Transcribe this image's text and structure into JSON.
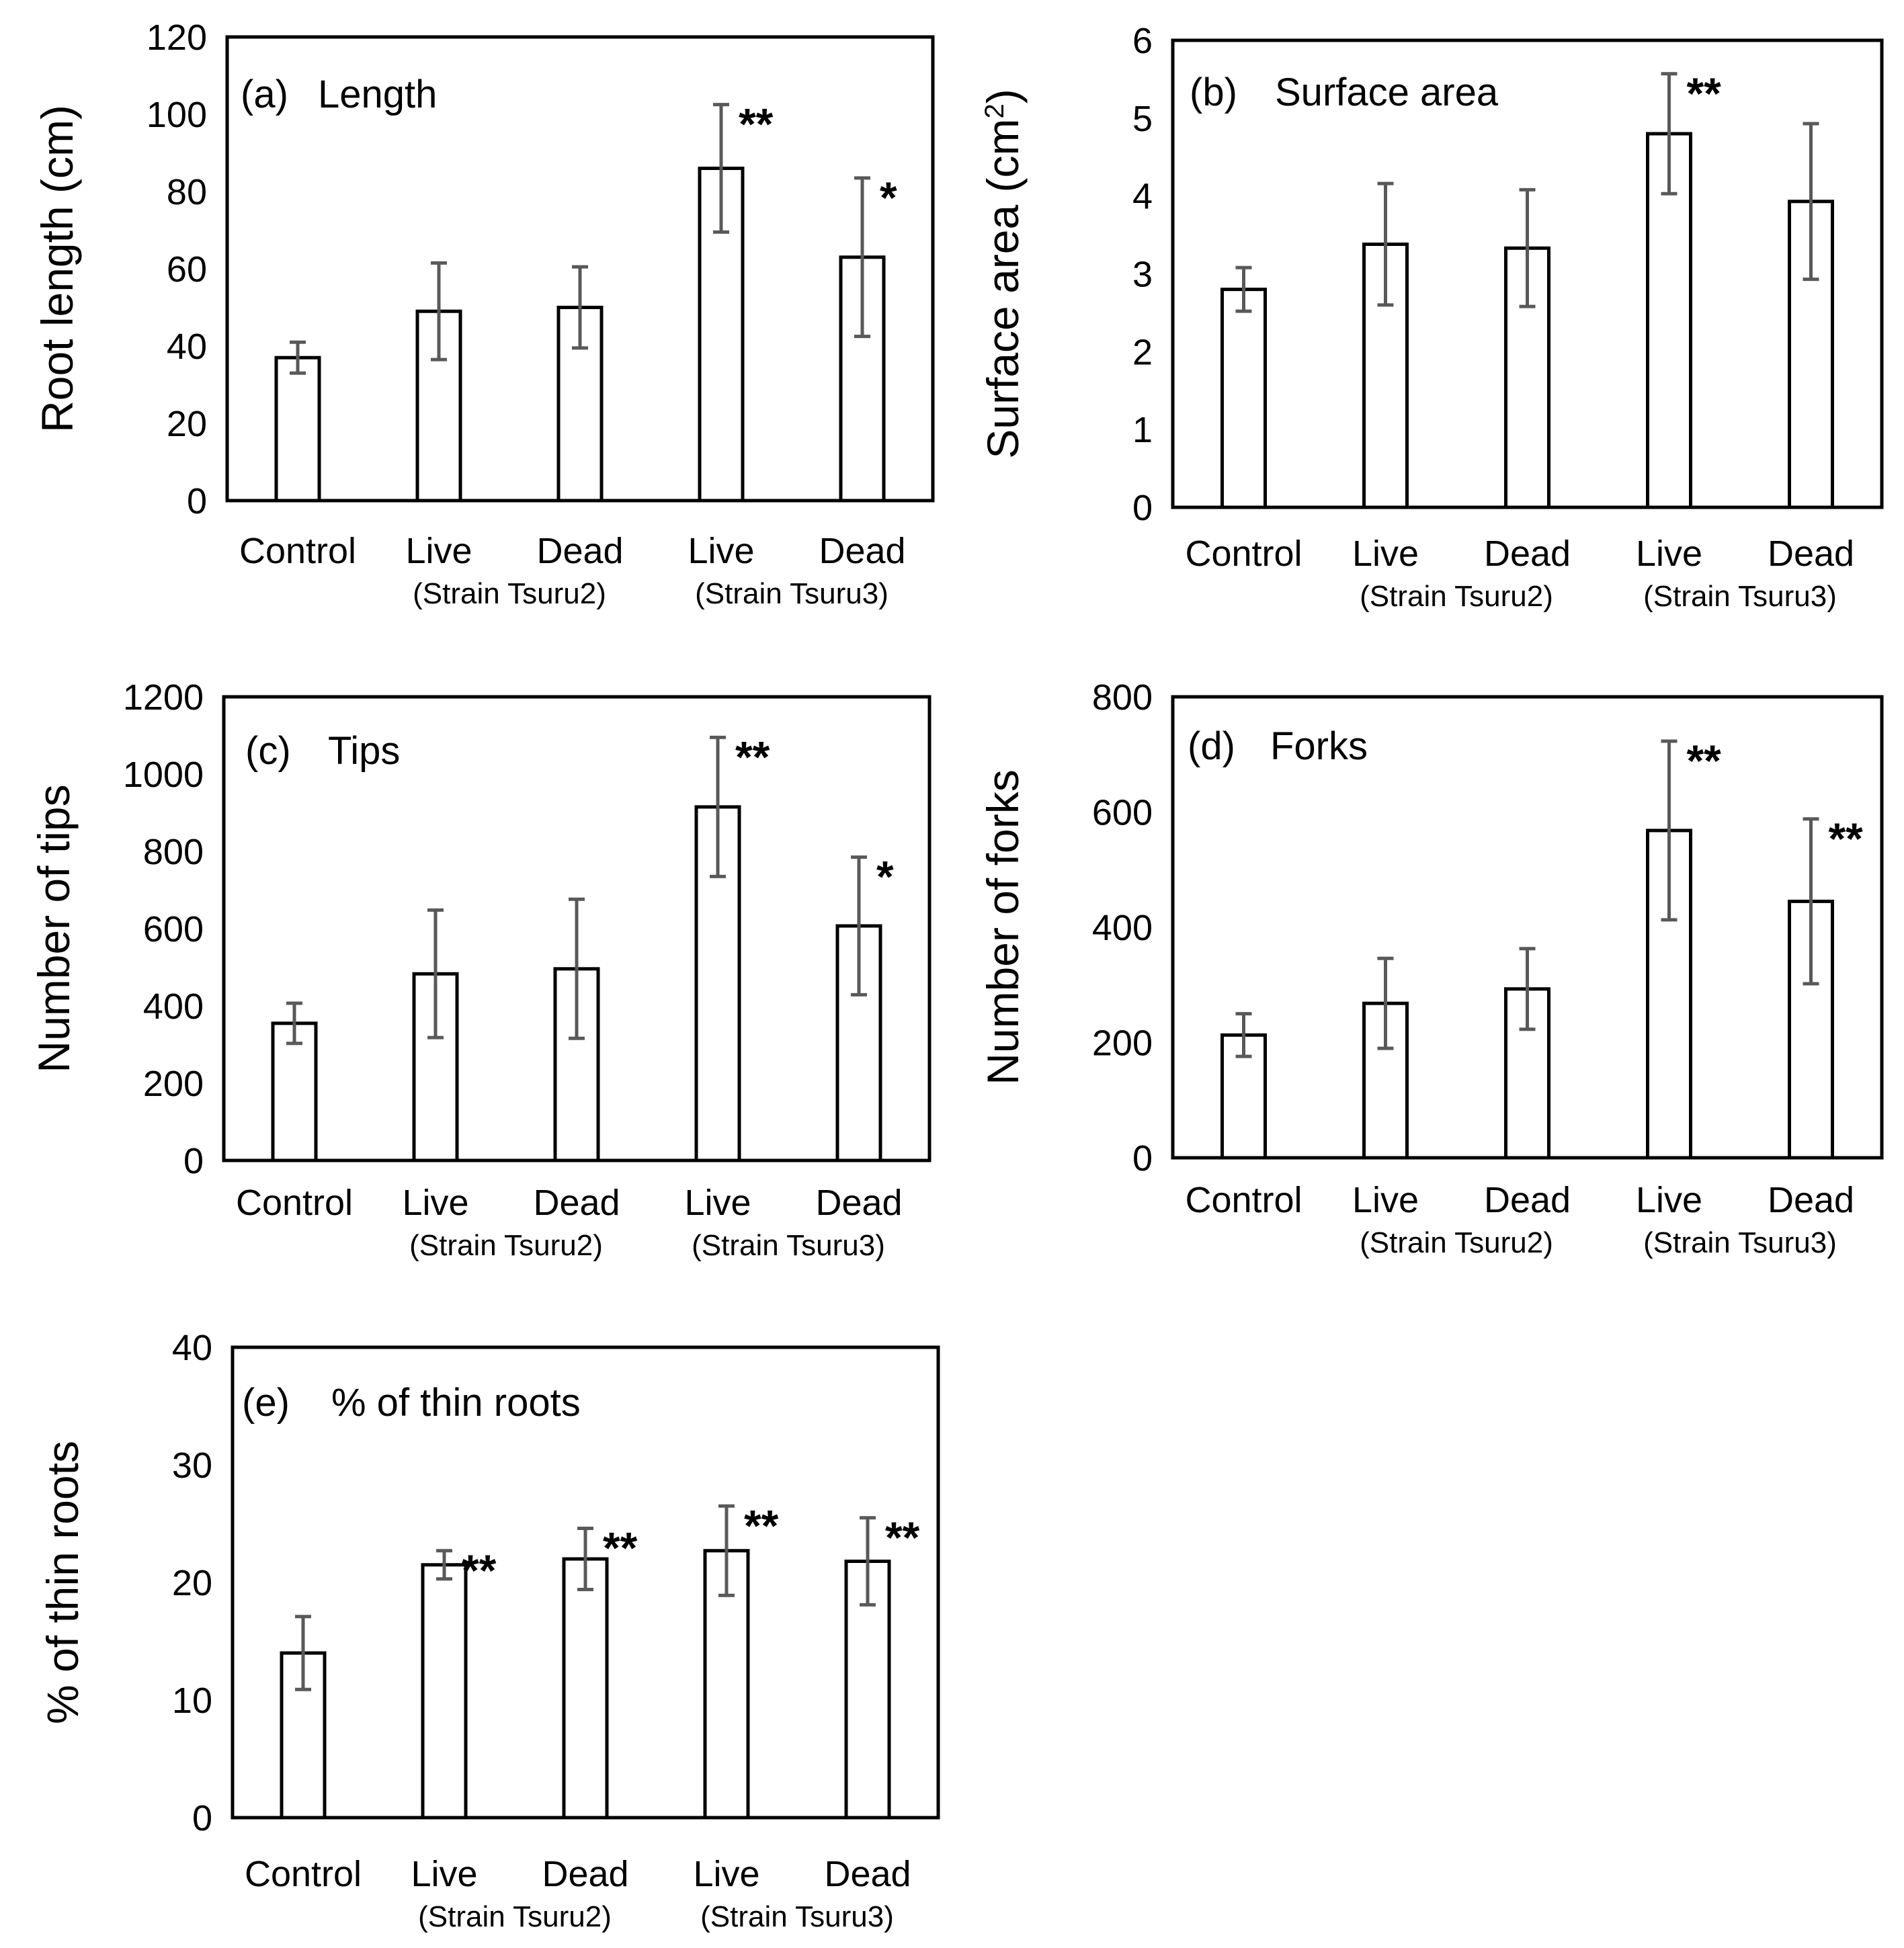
{
  "figure": {
    "panels": [
      {
        "tag": "(a)",
        "title": "Length",
        "ylabel": "Root length (cm)",
        "ylabel_sup": "",
        "ylabel_end": "",
        "categories": [
          "Control",
          "Live",
          "Dead",
          "Live",
          "Dead"
        ],
        "groups": [
          "(Strain Tsuru2)",
          "(Strain Tsuru3)"
        ]
      },
      {
        "tag": "(b)",
        "title": "Surface area",
        "ylabel": "Surface area (cm",
        "ylabel_sup": "2",
        "ylabel_end": ")",
        "categories": [
          "Control",
          "Live",
          "Dead",
          "Live",
          "Dead"
        ],
        "groups": [
          "(Strain Tsuru2)",
          "(Strain Tsuru3)"
        ]
      },
      {
        "tag": "(c)",
        "title": "Tips",
        "ylabel": "Number of tips",
        "ylabel_sup": "",
        "ylabel_end": "",
        "categories": [
          "Control",
          "Live",
          "Dead",
          "Live",
          "Dead"
        ],
        "groups": [
          "(Strain Tsuru2)",
          "(Strain Tsuru3)"
        ]
      },
      {
        "tag": "(d)",
        "title": "Forks",
        "ylabel": "Number of forks",
        "ylabel_sup": "",
        "ylabel_end": "",
        "categories": [
          "Control",
          "Live",
          "Dead",
          "Live",
          "Dead"
        ],
        "groups": [
          "(Strain Tsuru2)",
          "(Strain Tsuru3)"
        ]
      },
      {
        "tag": "(e)",
        "title": "% of thin roots",
        "ylabel": "% of thin roots",
        "ylabel_sup": "",
        "ylabel_end": "",
        "categories": [
          "Control",
          "Live",
          "Dead",
          "Live",
          "Dead"
        ],
        "groups": [
          "(Strain Tsuru2)",
          "(Strain Tsuru3)"
        ]
      }
    ]
  },
  "chart_data": [
    {
      "type": "bar",
      "panel": "(a)",
      "title": "Length",
      "ylabel": "Root length (cm)",
      "categories": [
        "Control",
        "Live",
        "Dead",
        "Live",
        "Dead"
      ],
      "groups": [
        {
          "label": "(Strain Tsuru2)",
          "members": [
            1,
            2
          ]
        },
        {
          "label": "(Strain Tsuru3)",
          "members": [
            3,
            4
          ]
        }
      ],
      "values": [
        37,
        49,
        50,
        86,
        63
      ],
      "errors": [
        4,
        12.5,
        10.5,
        16.5,
        20.5
      ],
      "significance": [
        "",
        "",
        "",
        "**",
        "*"
      ],
      "ylim": [
        0,
        120
      ],
      "yticks": [
        0,
        20,
        40,
        60,
        80,
        100,
        120
      ]
    },
    {
      "type": "bar",
      "panel": "(b)",
      "title": "Surface area",
      "ylabel": "Surface area (cm2)",
      "categories": [
        "Control",
        "Live",
        "Dead",
        "Live",
        "Dead"
      ],
      "groups": [
        {
          "label": "(Strain Tsuru2)",
          "members": [
            1,
            2
          ]
        },
        {
          "label": "(Strain Tsuru3)",
          "members": [
            3,
            4
          ]
        }
      ],
      "values": [
        2.8,
        3.38,
        3.33,
        4.8,
        3.93
      ],
      "errors": [
        0.28,
        0.78,
        0.75,
        0.77,
        1.0
      ],
      "significance": [
        "",
        "",
        "",
        "**",
        ""
      ],
      "ylim": [
        0,
        6
      ],
      "yticks": [
        0,
        1,
        2,
        3,
        4,
        5,
        6
      ]
    },
    {
      "type": "bar",
      "panel": "(c)",
      "title": "Tips",
      "ylabel": "Number of tips",
      "categories": [
        "Control",
        "Live",
        "Dead",
        "Live",
        "Dead"
      ],
      "groups": [
        {
          "label": "(Strain Tsuru2)",
          "members": [
            1,
            2
          ]
        },
        {
          "label": "(Strain Tsuru3)",
          "members": [
            3,
            4
          ]
        }
      ],
      "values": [
        355,
        483,
        496,
        915,
        607
      ],
      "errors": [
        52,
        165,
        180,
        180,
        178
      ],
      "significance": [
        "",
        "",
        "",
        "**",
        "*"
      ],
      "ylim": [
        0,
        1200
      ],
      "yticks": [
        0,
        200,
        400,
        600,
        800,
        1000,
        1200
      ]
    },
    {
      "type": "bar",
      "panel": "(d)",
      "title": "Forks",
      "ylabel": "Number of forks",
      "categories": [
        "Control",
        "Live",
        "Dead",
        "Live",
        "Dead"
      ],
      "groups": [
        {
          "label": "(Strain Tsuru2)",
          "members": [
            1,
            2
          ]
        },
        {
          "label": "(Strain Tsuru3)",
          "members": [
            3,
            4
          ]
        }
      ],
      "values": [
        213,
        268,
        293,
        568,
        445
      ],
      "errors": [
        37,
        78,
        70,
        155,
        143
      ],
      "significance": [
        "",
        "",
        "",
        "**",
        "**"
      ],
      "ylim": [
        0,
        800
      ],
      "yticks": [
        0,
        200,
        400,
        600,
        800
      ]
    },
    {
      "type": "bar",
      "panel": "(e)",
      "title": "% of thin roots",
      "ylabel": "% of thin roots",
      "categories": [
        "Control",
        "Live",
        "Dead",
        "Live",
        "Dead"
      ],
      "groups": [
        {
          "label": "(Strain Tsuru2)",
          "members": [
            1,
            2
          ]
        },
        {
          "label": "(Strain Tsuru3)",
          "members": [
            3,
            4
          ]
        }
      ],
      "values": [
        14,
        21.5,
        22,
        22.7,
        21.8
      ],
      "errors": [
        3.1,
        1.2,
        2.6,
        3.8,
        3.7
      ],
      "significance": [
        "",
        "**",
        "**",
        "**",
        "**"
      ],
      "ylim": [
        0,
        40
      ],
      "yticks": [
        0,
        10,
        20,
        30,
        40
      ]
    }
  ]
}
